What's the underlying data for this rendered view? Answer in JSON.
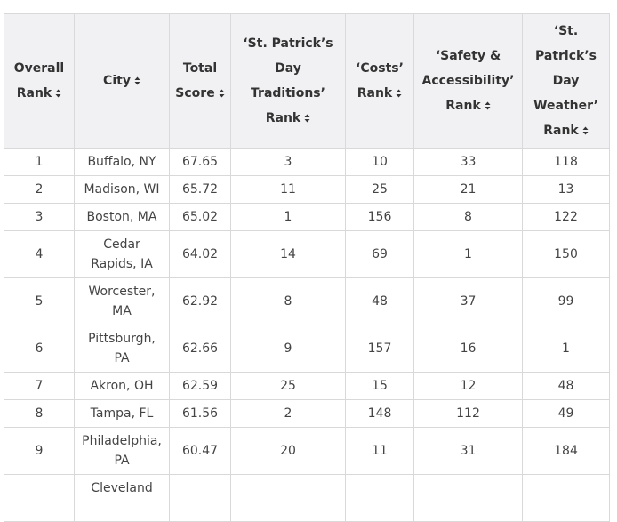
{
  "table": {
    "headers": [
      "Overall Rank",
      "City",
      "Total Score",
      "‘St. Patrick’s Day Traditions’ Rank",
      "‘Costs’ Rank",
      "‘Safety & Accessibility’ Rank",
      "‘St. Patrick’s Day Weather’ Rank"
    ],
    "rows": [
      [
        "1",
        "Buffalo, NY",
        "67.65",
        "3",
        "10",
        "33",
        "118"
      ],
      [
        "2",
        "Madison, WI",
        "65.72",
        "11",
        "25",
        "21",
        "13"
      ],
      [
        "3",
        "Boston, MA",
        "65.02",
        "1",
        "156",
        "8",
        "122"
      ],
      [
        "4",
        "Cedar Rapids, IA",
        "64.02",
        "14",
        "69",
        "1",
        "150"
      ],
      [
        "5",
        "Worcester, MA",
        "62.92",
        "8",
        "48",
        "37",
        "99"
      ],
      [
        "6",
        "Pittsburgh, PA",
        "62.66",
        "9",
        "157",
        "16",
        "1"
      ],
      [
        "7",
        "Akron, OH",
        "62.59",
        "25",
        "15",
        "12",
        "48"
      ],
      [
        "8",
        "Tampa, FL",
        "61.56",
        "2",
        "148",
        "112",
        "49"
      ],
      [
        "9",
        "Philadelphia, PA",
        "60.47",
        "20",
        "11",
        "31",
        "184"
      ]
    ],
    "partial_row_city": "Cleveland"
  }
}
